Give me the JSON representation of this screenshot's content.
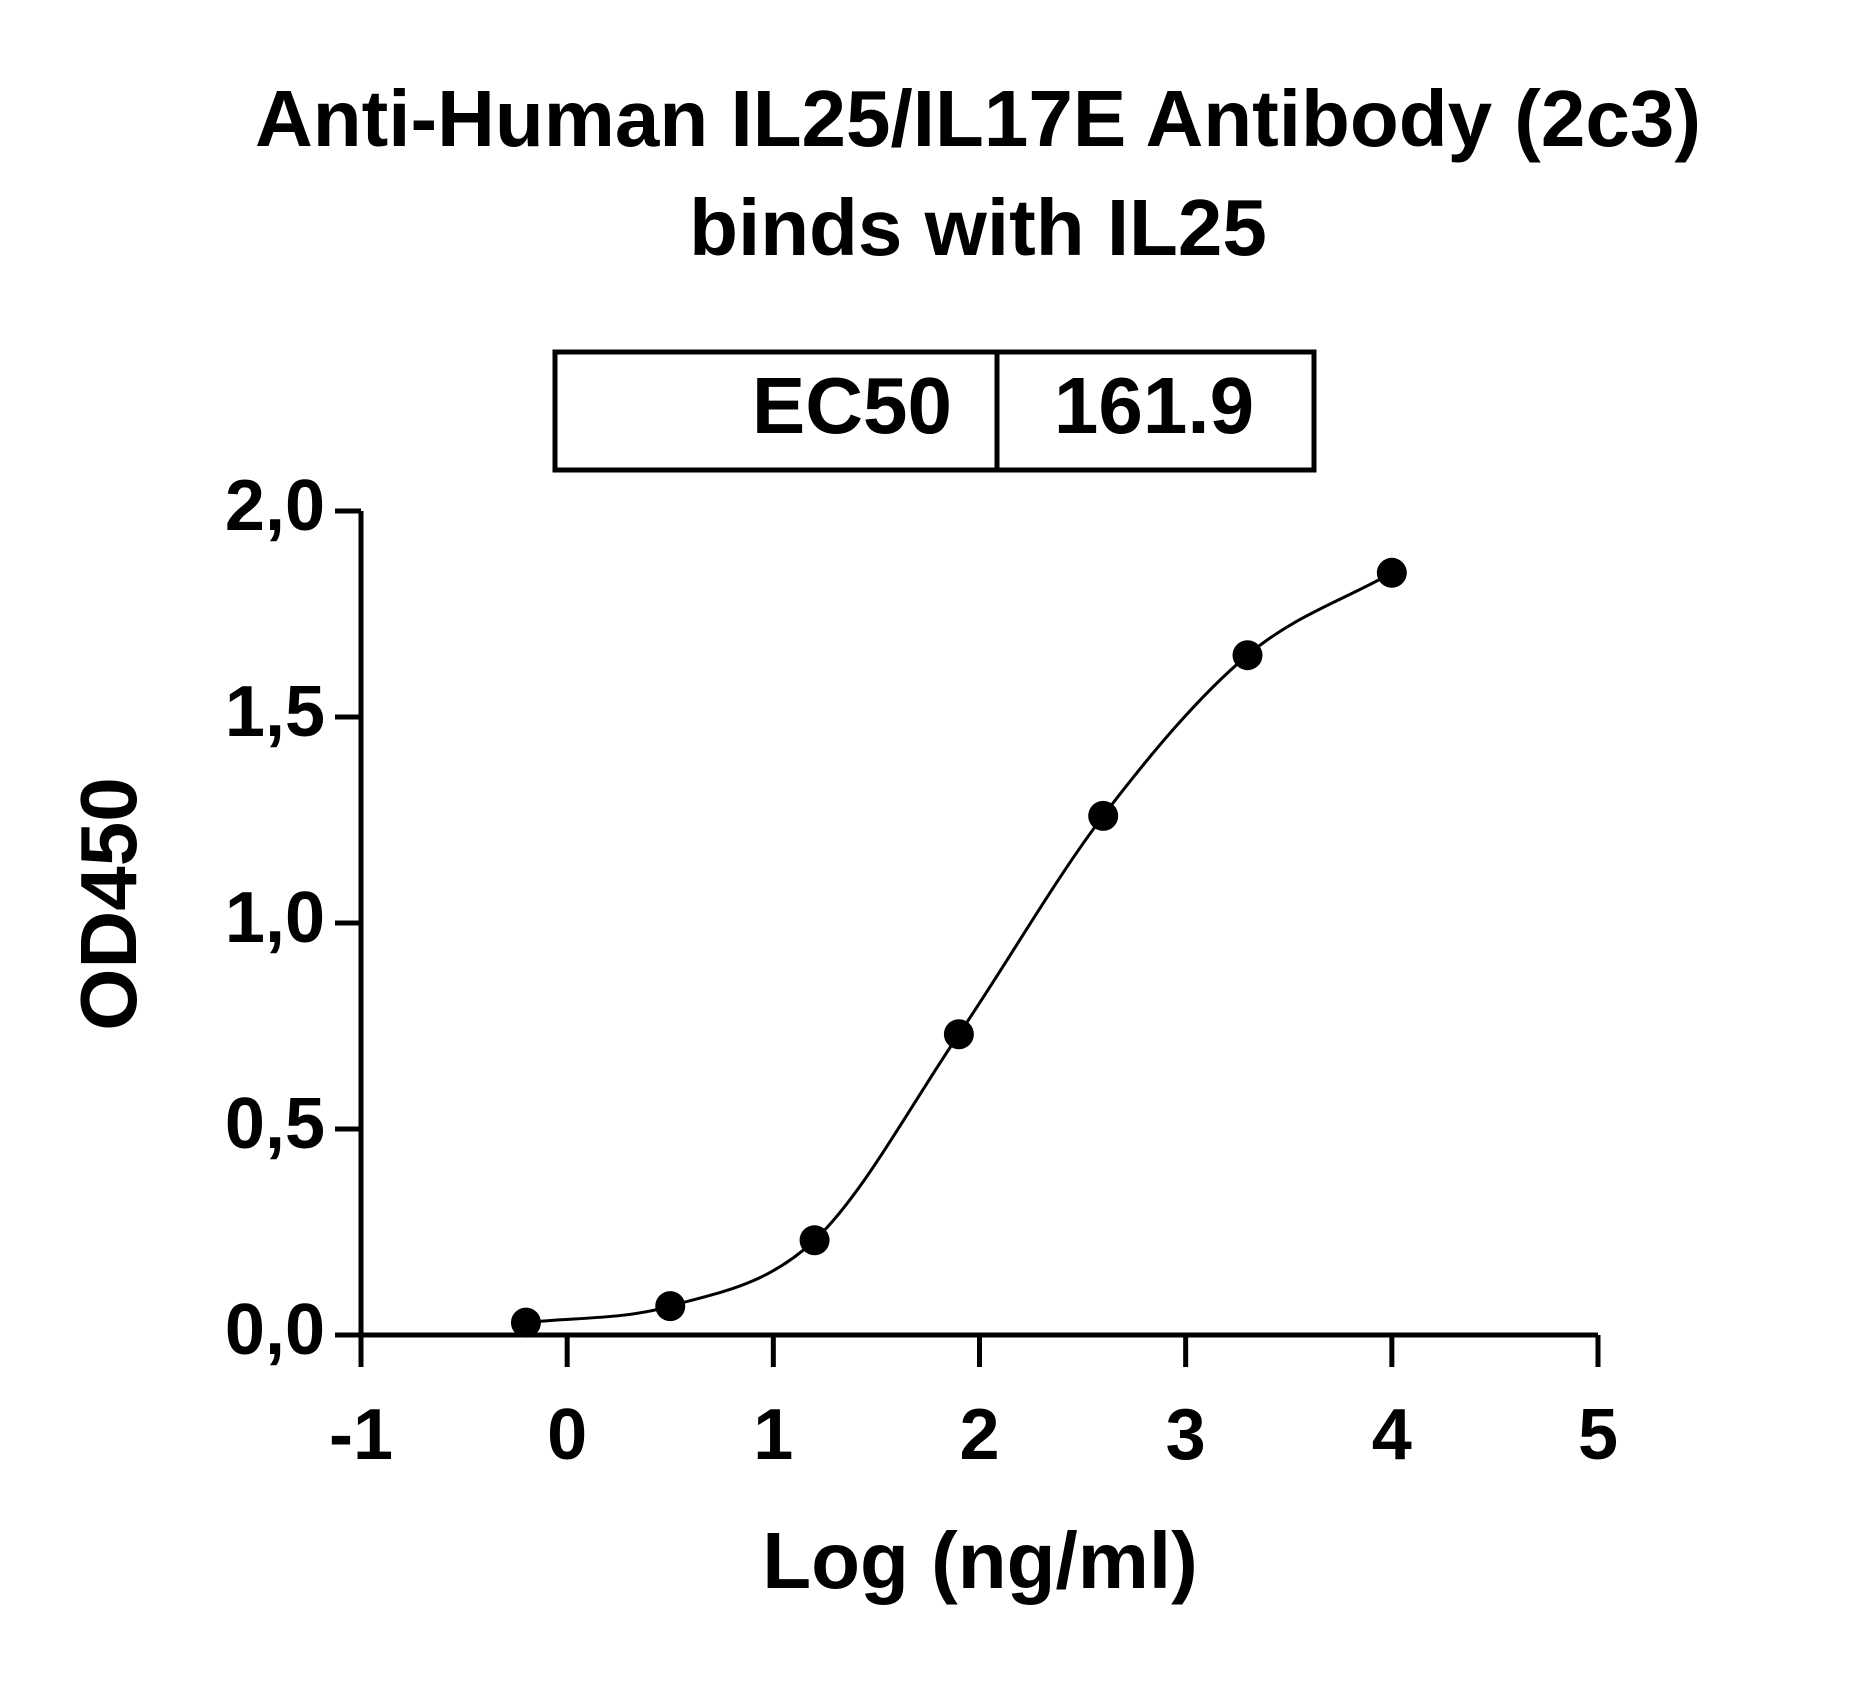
{
  "chart_data": {
    "type": "scatter",
    "title": [
      "Anti-Human IL25/IL17E Antibody (2c3)",
      "binds with IL25"
    ],
    "ec50_table": {
      "label": "EC50",
      "value": 161.9
    },
    "x_label": "Log (ng/ml)",
    "y_label": "OD450",
    "x": [
      -0.2,
      0.5,
      1.2,
      1.9,
      2.6,
      3.3,
      4.0
    ],
    "values": [
      0.03,
      0.07,
      0.23,
      0.73,
      1.26,
      1.65,
      1.85
    ],
    "color": "#000000",
    "fit_curve": true,
    "xlim": [
      -1,
      5
    ],
    "xticks": [
      -1,
      0,
      1,
      2,
      3,
      4,
      5
    ],
    "ylim": [
      0,
      2
    ],
    "yticks": [
      {
        "value": 0,
        "label": "0,0"
      },
      {
        "value": 0.5,
        "label": "0,5"
      },
      {
        "value": 1,
        "label": "1,0"
      },
      {
        "value": 1.5,
        "label": "1,5"
      },
      {
        "value": 2,
        "label": "2,0"
      }
    ]
  }
}
